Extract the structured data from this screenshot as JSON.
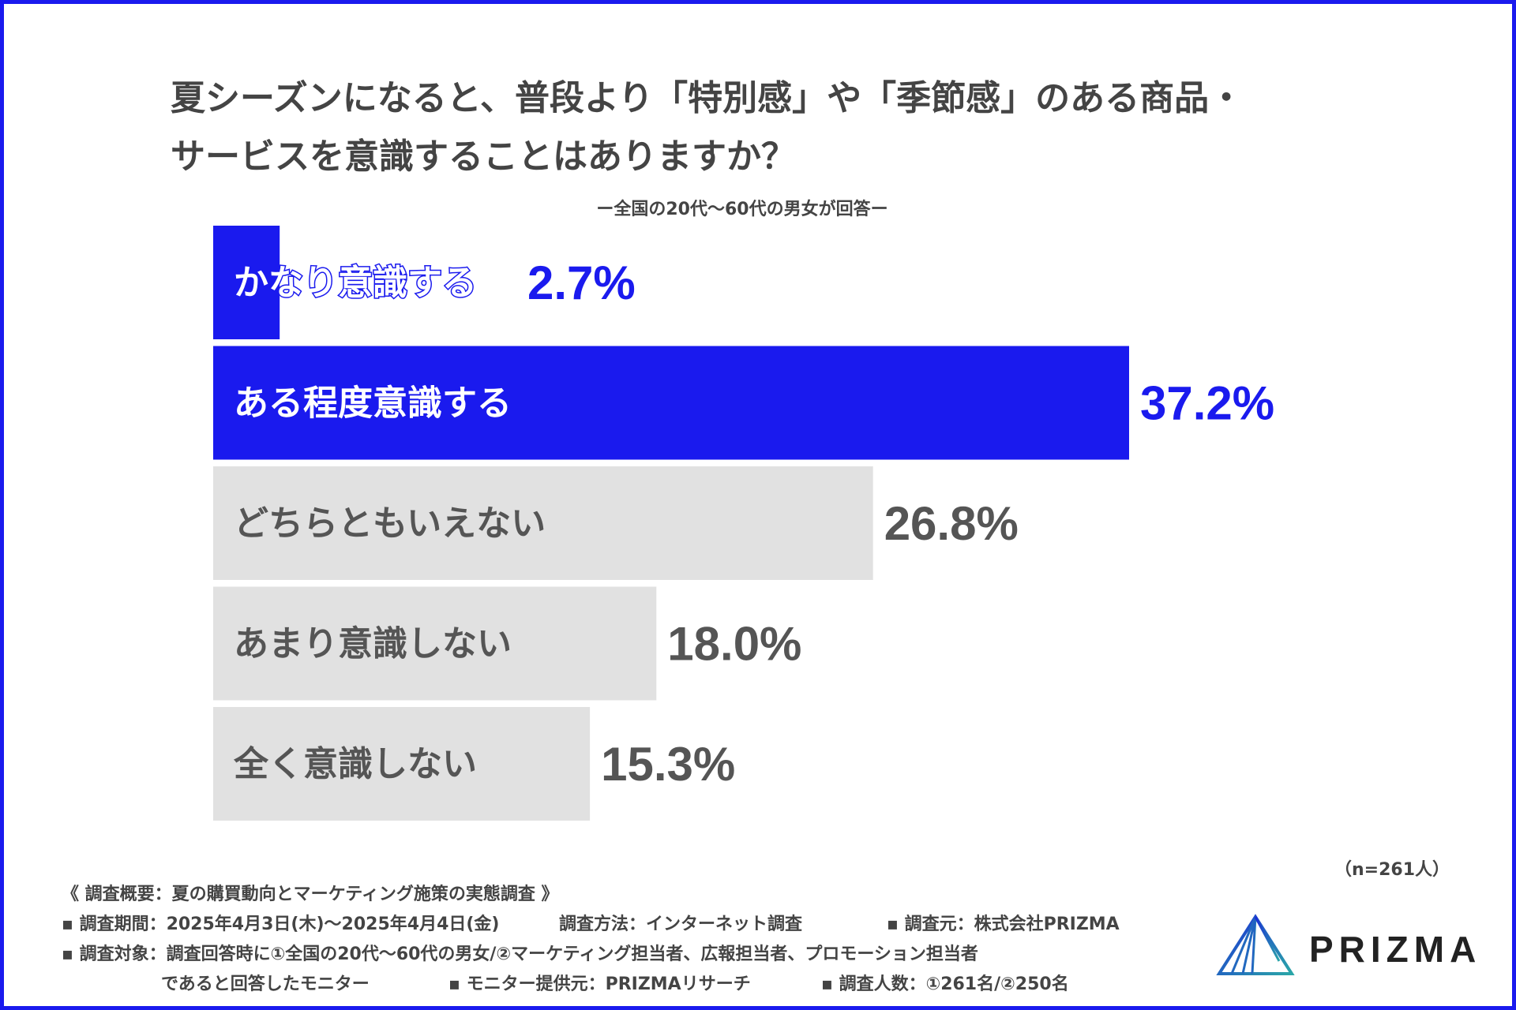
{
  "title": {
    "line1": "夏シーズンになると、普段より「特別感」や「季節感」のある商品・",
    "line2": "サービスを意識することはありますか？"
  },
  "subtitle": "ー全国の20代〜60代の男女が回答ー",
  "chart_data": {
    "type": "bar",
    "orientation": "horizontal",
    "title": "夏シーズンになると、普段より「特別感」や「季節感」のある商品・サービスを意識することはありますか？",
    "categories": [
      "かなり意識する",
      "ある程度意識する",
      "どちらともいえない",
      "あまり意識しない",
      "全く意識しない"
    ],
    "values": [
      2.7,
      37.2,
      26.8,
      18.0,
      15.3
    ],
    "value_labels": [
      "2.7%",
      "37.2%",
      "26.8%",
      "18.0%",
      "15.3%"
    ],
    "unit": "%",
    "xlim": [
      0,
      37.2
    ],
    "highlight_color": "#1a1aee",
    "neutral_color": "#e1e1e1",
    "highlight_text_color": "#ffffff",
    "neutral_text_color": "#555555",
    "highlighted": [
      true,
      true,
      false,
      false,
      false
    ]
  },
  "n_label": "（n=261人）",
  "notes": {
    "heading": "《 調査概要：夏の購買動向とマーケティング施策の実態調査 》",
    "period": "▪ 調査期間：2025年4月3日(木)〜2025年4月4日(金)",
    "method": "調査方法：インターネット調査",
    "source": "▪ 調査元：株式会社PRIZMA",
    "target": "▪ 調査対象：調査回答時に①全国の20代〜60代の男女/②マーケティング担当者、広報担当者、プロモーション担当者",
    "target_cont": "であると回答したモニター",
    "monitor": "▪ モニター提供元：PRIZMAリサーチ",
    "count": "▪ 調査人数：①261名/②250名"
  },
  "logo": {
    "text": "PRIZMA",
    "icon": "prism-icon"
  }
}
